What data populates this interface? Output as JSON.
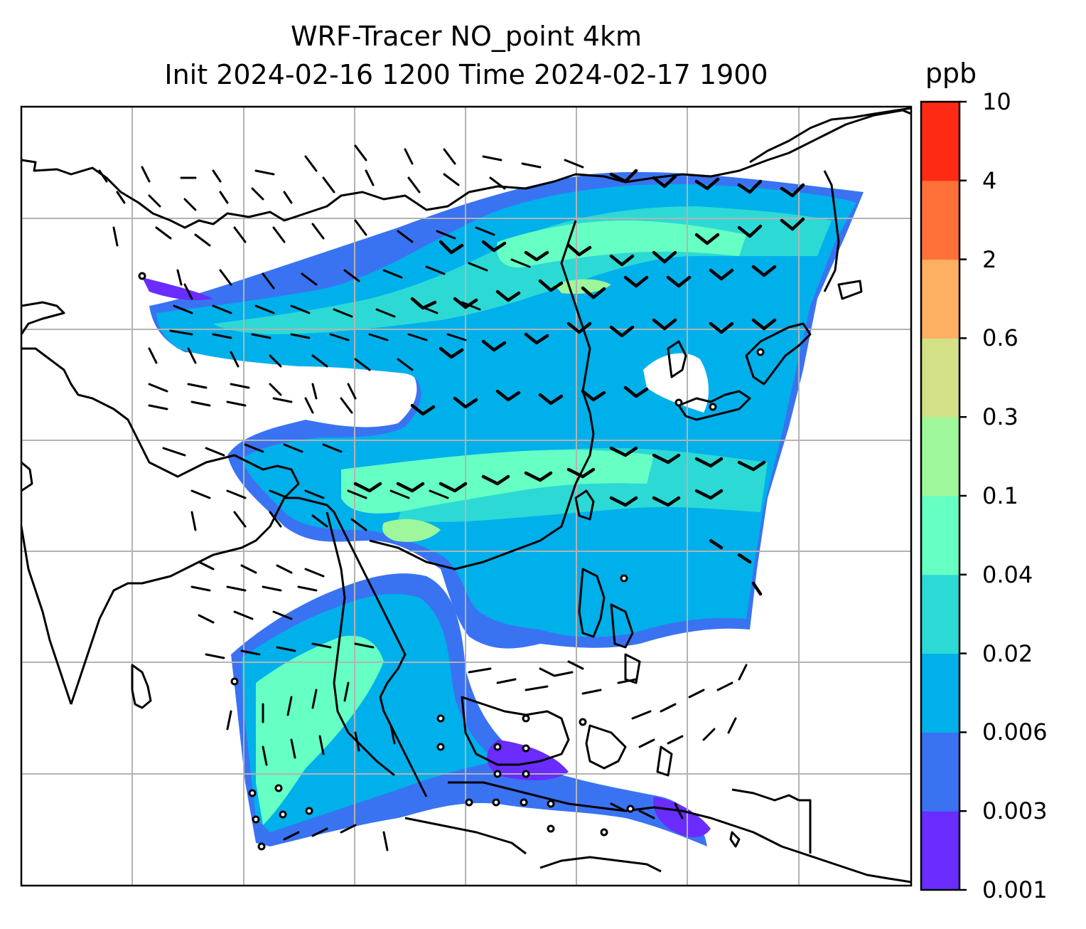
{
  "title": {
    "line1": "WRF-Tracer NO_point 4km",
    "line2": "Init 2024-02-16 1200 Time 2024-02-17 1900"
  },
  "colorbar": {
    "unit": "ppb",
    "levels": [
      "0.001",
      "0.003",
      "0.006",
      "0.02",
      "0.04",
      "0.1",
      "0.3",
      "0.6",
      "2",
      "4",
      "10"
    ],
    "colors": [
      "#6a2cff",
      "#3a73f2",
      "#00b0eb",
      "#2dd9d5",
      "#66ffc4",
      "#9ef79a",
      "#d3e085",
      "#fdb061",
      "#ff7138",
      "#ff2a14"
    ]
  },
  "map": {
    "type": "WRF tracer concentration with wind barbs",
    "region": "East and Southeast Asia",
    "gridlines": true,
    "wind_barbs": true,
    "field": "NO_point tracer concentration",
    "field_colors": {
      "background": "#ffffff",
      "land_outline": "#000000",
      "gridline": "#b3b3b3"
    }
  }
}
